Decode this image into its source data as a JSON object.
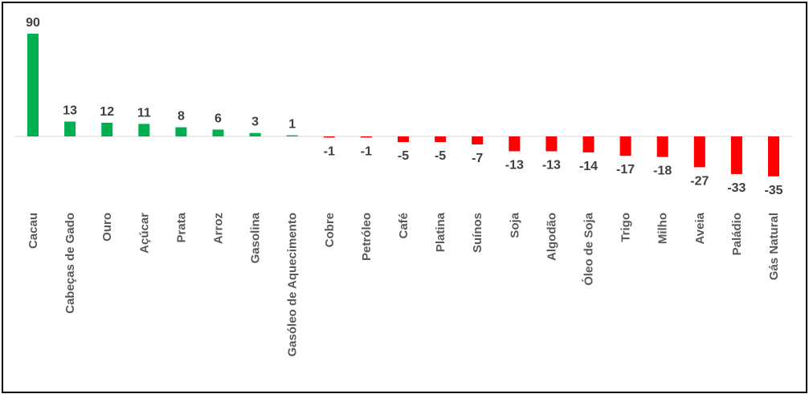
{
  "chart_data": {
    "type": "bar",
    "title": "",
    "xlabel": "",
    "ylabel": "",
    "categories": [
      "Cacau",
      "Cabeças de Gado",
      "Ouro",
      "Açúcar",
      "Prata",
      "Arroz",
      "Gasolina",
      "Gasóleo de Aquecimento",
      "Cobre",
      "Petróleo",
      "Café",
      "Platina",
      "Suínos",
      "Soja",
      "Algodão",
      "Óleo de Soja",
      "Trigo",
      "Milho",
      "Aveia",
      "Paládio",
      "Gás Natural"
    ],
    "values": [
      90,
      13,
      12,
      11,
      8,
      6,
      3,
      1,
      -1,
      -1,
      -5,
      -5,
      -7,
      -13,
      -13,
      -14,
      -17,
      -18,
      -27,
      -33,
      -35
    ],
    "data_labels": [
      "90",
      "13",
      "12",
      "11",
      "8",
      "6",
      "3",
      "1",
      "-1",
      "-1",
      "-5",
      "-5",
      "-7",
      "-13",
      "-13",
      "-14",
      "-17",
      "-18",
      "-27",
      "-33",
      "-35"
    ],
    "ylim": [
      -35,
      90
    ],
    "grid": false,
    "legend": "none",
    "colors": {
      "positive": "#00b050",
      "negative": "#ff0000",
      "axis": "#d9d9d9",
      "value_text": "#404040",
      "category_text": "#595959"
    }
  }
}
